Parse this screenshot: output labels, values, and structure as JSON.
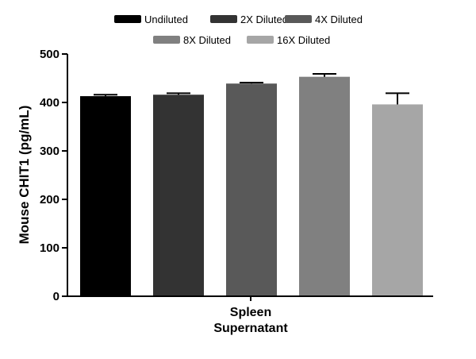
{
  "chart_data": {
    "type": "bar",
    "title": "",
    "xlabel": "",
    "ylabel": "Mouse CHIT1 (pg/mL)",
    "ylim": [
      0,
      500
    ],
    "yticks": [
      0,
      100,
      200,
      300,
      400,
      500
    ],
    "category_lines": [
      "Spleen",
      "Supernatant"
    ],
    "legend_position": "top",
    "series": [
      {
        "name": "Undiluted",
        "value": 413,
        "error": 3,
        "color": "#000000"
      },
      {
        "name": "2X Diluted",
        "value": 416,
        "error": 3,
        "color": "#333333"
      },
      {
        "name": "4X Diluted",
        "value": 439,
        "error": 2,
        "color": "#595959"
      },
      {
        "name": "8X Diluted",
        "value": 453,
        "error": 6,
        "color": "#808080"
      },
      {
        "name": "16X Diluted",
        "value": 396,
        "error": 23,
        "color": "#a6a6a6"
      }
    ]
  }
}
